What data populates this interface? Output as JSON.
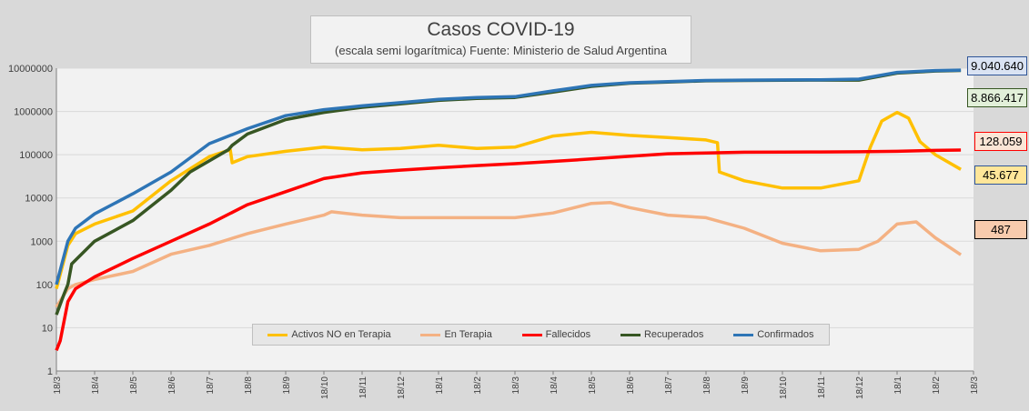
{
  "chart_data": {
    "type": "line",
    "title": "Casos COVID-19",
    "subtitle": "(escala semi logarítmica) Fuente: Ministerio de Salud Argentina",
    "yscale": "log",
    "ylim": [
      1,
      10000000
    ],
    "yticks": [
      "1",
      "10",
      "100",
      "1000",
      "10000",
      "100000",
      "1000000",
      "10000000"
    ],
    "xticks": [
      "18/3",
      "18/4",
      "18/5",
      "18/6",
      "18/7",
      "18/8",
      "18/9",
      "18/10",
      "18/11",
      "18/12",
      "18/1",
      "18/2",
      "18/3",
      "18/4",
      "18/5",
      "18/6",
      "18/7",
      "18/8",
      "18/9",
      "18/10",
      "18/11",
      "18/12",
      "18/1",
      "18/2",
      "18/3"
    ],
    "x_unit": "months since 18/3",
    "xlim": [
      0,
      23.67
    ],
    "legend_position": "bottom-center",
    "series": [
      {
        "name": "Activos NO en Terapia",
        "color": "#ffc000",
        "last_label": "45.677",
        "label_bg": "#ffe699",
        "label_border": "#2f5597",
        "x": [
          0,
          0.3,
          0.5,
          1,
          2,
          3,
          4,
          4.55,
          4.6,
          5,
          6,
          7,
          8,
          9,
          10,
          11,
          12,
          13,
          14,
          15,
          16,
          17,
          17.3,
          17.35,
          18,
          19,
          20,
          21,
          21.3,
          21.6,
          22,
          22.3,
          22.6,
          23,
          23.67
        ],
        "y": [
          80,
          800,
          1500,
          2500,
          5000,
          25000,
          90000,
          130000,
          65000,
          90000,
          120000,
          150000,
          130000,
          140000,
          165000,
          140000,
          150000,
          270000,
          330000,
          280000,
          250000,
          220000,
          190000,
          40000,
          25000,
          17000,
          17000,
          25000,
          150000,
          600000,
          950000,
          700000,
          200000,
          100000,
          45677
        ]
      },
      {
        "name": "En Terapia",
        "color": "#f4b183",
        "last_label": "487",
        "label_bg": "#f8cbad",
        "label_border": "#000000",
        "x": [
          0,
          0.3,
          0.5,
          1,
          2,
          3,
          4,
          5,
          6,
          7,
          7.2,
          8,
          9,
          10,
          11,
          12,
          13,
          14,
          14.5,
          15,
          16,
          17,
          18,
          19,
          20,
          21,
          21.5,
          22,
          22.5,
          23,
          23.67
        ],
        "y": [
          30,
          80,
          100,
          130,
          200,
          500,
          800,
          1500,
          2500,
          4000,
          4800,
          4000,
          3500,
          3500,
          3500,
          3500,
          4500,
          7500,
          7800,
          6000,
          4000,
          3500,
          2000,
          900,
          600,
          650,
          1000,
          2500,
          2800,
          1200,
          487
        ]
      },
      {
        "name": "Fallecidos",
        "color": "#ff0000",
        "last_label": "128.059",
        "label_bg": "#fbe5d6",
        "label_border": "#ff0000",
        "x": [
          0,
          0.1,
          0.3,
          0.5,
          1,
          2,
          3,
          4,
          5,
          6,
          7,
          8,
          9,
          10,
          11,
          12,
          13,
          14,
          15,
          16,
          17,
          18,
          19,
          20,
          21,
          22,
          23,
          23.67
        ],
        "y": [
          3,
          5,
          40,
          80,
          150,
          400,
          1000,
          2500,
          7000,
          14000,
          28000,
          38000,
          44000,
          50000,
          56000,
          62000,
          70000,
          80000,
          92000,
          105000,
          110000,
          114000,
          115000,
          116000,
          117000,
          120000,
          126000,
          128059
        ]
      },
      {
        "name": "Recuperados",
        "color": "#375623",
        "last_label": "8.866.417",
        "label_bg": "#e2f0d9",
        "label_border": "#375623",
        "x": [
          0,
          0.2,
          0.3,
          0.4,
          1,
          2,
          3,
          3.5,
          4.5,
          4.6,
          5,
          6,
          7,
          8,
          9,
          10,
          11,
          12,
          13,
          14,
          15,
          16,
          17,
          18,
          19,
          20,
          21,
          22,
          23,
          23.67
        ],
        "y": [
          20,
          60,
          100,
          300,
          1000,
          3000,
          15000,
          40000,
          130000,
          165000,
          300000,
          650000,
          950000,
          1250000,
          1500000,
          1800000,
          2000000,
          2100000,
          2800000,
          3800000,
          4500000,
          4800000,
          5100000,
          5200000,
          5250000,
          5300000,
          5300000,
          7700000,
          8600000,
          8866417
        ]
      },
      {
        "name": "Confirmados",
        "color": "#2e75b6",
        "last_label": "9.040.640",
        "label_bg": "#dae3f3",
        "label_border": "#2f5597",
        "x": [
          0,
          0.3,
          0.5,
          1,
          2,
          3,
          4,
          5,
          6,
          7,
          8,
          9,
          10,
          11,
          12,
          13,
          14,
          15,
          16,
          17,
          18,
          19,
          20,
          21,
          22,
          23,
          23.67
        ],
        "y": [
          100,
          1000,
          2000,
          4300,
          12500,
          40000,
          180000,
          400000,
          800000,
          1100000,
          1350000,
          1600000,
          1900000,
          2100000,
          2200000,
          3000000,
          4000000,
          4600000,
          4900000,
          5200000,
          5300000,
          5350000,
          5400000,
          5600000,
          8000000,
          8800000,
          9040640
        ]
      }
    ]
  }
}
